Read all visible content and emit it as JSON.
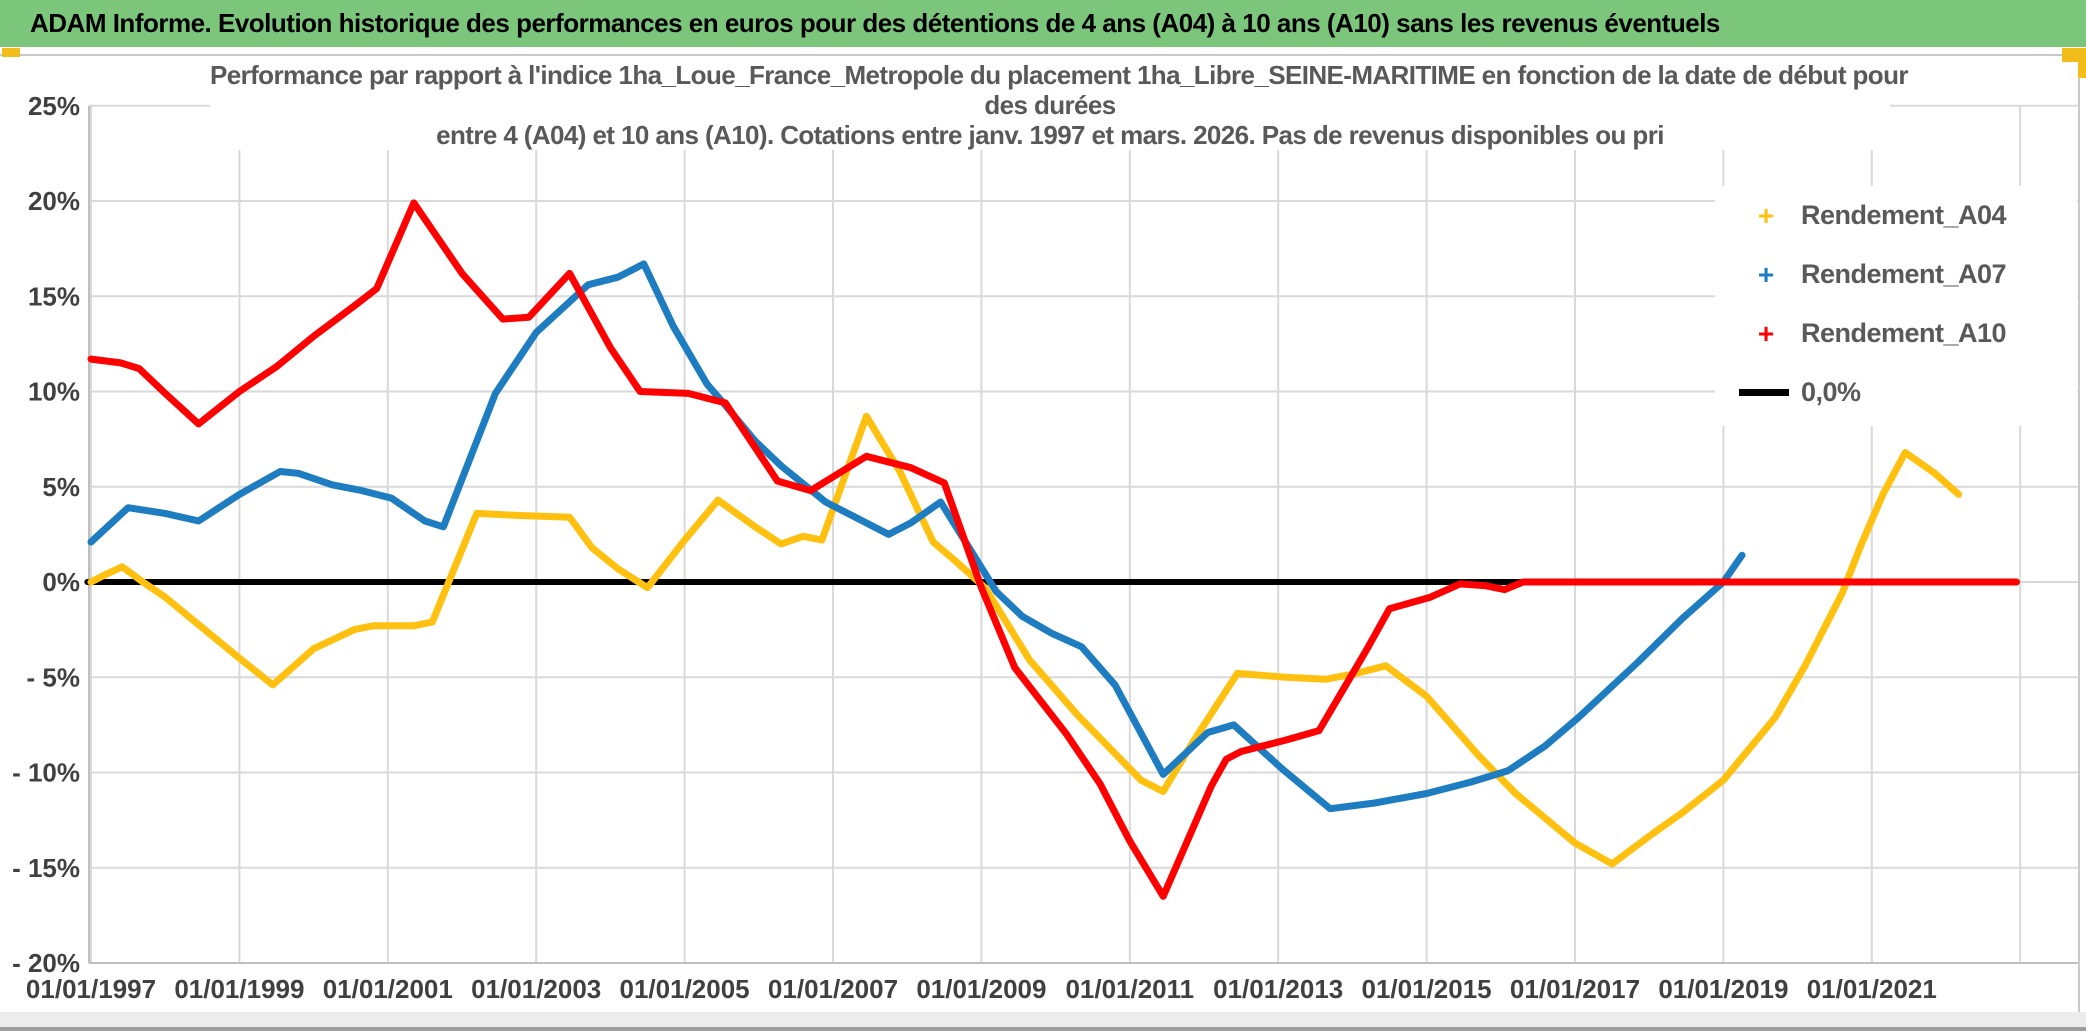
{
  "header": {
    "title": "ADAM Informe. Evolution historique des performances en euros pour des détentions de 4 ans (A04) à 10 ans (A10) sans les revenus éventuels",
    "bar_color": "#7CC67C"
  },
  "chart_data": {
    "type": "line",
    "title_lines": [
      "Performance par rapport à l'indice 1ha_Loue_France_Metropole  du placement 1ha_Libre_SEINE-MARITIME en fonction de la date de début pour",
      "des durées",
      "entre 4 (A04) et 10 ans (A10). Cotations entre janv. 1997 et mars. 2026. Pas de revenus disponibles ou pri"
    ],
    "y_axis": {
      "min": -20,
      "max": 25,
      "step": 5,
      "unit": "%"
    },
    "x_axis": {
      "first_label_year": 1997,
      "label_every_years": 2,
      "plot_end_year": 2023.7
    },
    "grid": true,
    "legend_position": "upper-right",
    "y_tick_labels": [
      "25%",
      "20%",
      "15%",
      "10%",
      "5%",
      "0%",
      "- 5%",
      "- 10%",
      "- 15%",
      "- 20%"
    ],
    "x_tick_labels": [
      "01/01/1997",
      "01/01/1999",
      "01/01/2001",
      "01/01/2003",
      "01/01/2005",
      "01/01/2007",
      "01/01/2009",
      "01/01/2011",
      "01/01/2013",
      "01/01/2015",
      "01/01/2017",
      "01/01/2019",
      "01/01/2021"
    ],
    "series": [
      {
        "name": "Rendement_A04",
        "color": "#FFC010",
        "marker": "plus",
        "points": [
          [
            1997.0,
            0.0
          ],
          [
            1997.2,
            0.4
          ],
          [
            1997.42,
            0.8
          ],
          [
            1997.7,
            0.0
          ],
          [
            1998.0,
            -0.8
          ],
          [
            1998.5,
            -2.4
          ],
          [
            1999.0,
            -4.0
          ],
          [
            1999.45,
            -5.4
          ],
          [
            2000.0,
            -3.5
          ],
          [
            2000.55,
            -2.5
          ],
          [
            2000.8,
            -2.3
          ],
          [
            2001.35,
            -2.3
          ],
          [
            2001.6,
            -2.1
          ],
          [
            2002.2,
            3.6
          ],
          [
            2002.7,
            3.5
          ],
          [
            2003.45,
            3.4
          ],
          [
            2003.75,
            1.8
          ],
          [
            2004.1,
            0.7
          ],
          [
            2004.5,
            -0.3
          ],
          [
            2005.0,
            2.2
          ],
          [
            2005.45,
            4.3
          ],
          [
            2005.95,
            2.9
          ],
          [
            2006.3,
            2.0
          ],
          [
            2006.6,
            2.4
          ],
          [
            2006.85,
            2.2
          ],
          [
            2007.45,
            8.7
          ],
          [
            2007.9,
            5.8
          ],
          [
            2008.35,
            2.1
          ],
          [
            2008.65,
            1.1
          ],
          [
            2009.05,
            -0.3
          ],
          [
            2009.65,
            -4.1
          ],
          [
            2010.3,
            -7.0
          ],
          [
            2011.15,
            -10.4
          ],
          [
            2011.45,
            -11.0
          ],
          [
            2011.85,
            -8.4
          ],
          [
            2012.45,
            -4.8
          ],
          [
            2013.1,
            -5.0
          ],
          [
            2013.65,
            -5.1
          ],
          [
            2014.05,
            -4.8
          ],
          [
            2014.45,
            -4.4
          ],
          [
            2015.0,
            -6.0
          ],
          [
            2015.7,
            -9.1
          ],
          [
            2016.2,
            -11.1
          ],
          [
            2017.0,
            -13.7
          ],
          [
            2017.5,
            -14.8
          ],
          [
            2018.05,
            -13.2
          ],
          [
            2018.45,
            -12.1
          ],
          [
            2019.0,
            -10.4
          ],
          [
            2019.7,
            -7.1
          ],
          [
            2020.1,
            -4.4
          ],
          [
            2020.6,
            -0.6
          ],
          [
            2020.85,
            1.9
          ],
          [
            2021.15,
            4.6
          ],
          [
            2021.45,
            6.8
          ],
          [
            2021.85,
            5.7
          ],
          [
            2022.17,
            4.6
          ]
        ]
      },
      {
        "name": "Rendement_A07",
        "color": "#1E7CC1",
        "marker": "plus",
        "points": [
          [
            1997.0,
            2.1
          ],
          [
            1997.5,
            3.9
          ],
          [
            1998.0,
            3.6
          ],
          [
            1998.45,
            3.2
          ],
          [
            1999.0,
            4.6
          ],
          [
            1999.55,
            5.8
          ],
          [
            1999.8,
            5.7
          ],
          [
            2000.25,
            5.1
          ],
          [
            2000.65,
            4.8
          ],
          [
            2001.05,
            4.4
          ],
          [
            2001.5,
            3.2
          ],
          [
            2001.75,
            2.9
          ],
          [
            2002.45,
            9.9
          ],
          [
            2003.0,
            13.1
          ],
          [
            2003.7,
            15.6
          ],
          [
            2004.1,
            16.0
          ],
          [
            2004.45,
            16.7
          ],
          [
            2004.85,
            13.4
          ],
          [
            2005.3,
            10.4
          ],
          [
            2005.5,
            9.5
          ],
          [
            2005.95,
            7.4
          ],
          [
            2006.3,
            6.1
          ],
          [
            2006.9,
            4.2
          ],
          [
            2007.35,
            3.3
          ],
          [
            2007.75,
            2.5
          ],
          [
            2008.05,
            3.1
          ],
          [
            2008.45,
            4.2
          ],
          [
            2008.85,
            1.7
          ],
          [
            2009.2,
            -0.5
          ],
          [
            2009.55,
            -1.8
          ],
          [
            2009.95,
            -2.7
          ],
          [
            2010.35,
            -3.4
          ],
          [
            2010.8,
            -5.4
          ],
          [
            2011.45,
            -10.1
          ],
          [
            2012.05,
            -7.9
          ],
          [
            2012.4,
            -7.5
          ],
          [
            2013.05,
            -9.8
          ],
          [
            2013.7,
            -11.9
          ],
          [
            2014.3,
            -11.6
          ],
          [
            2015.0,
            -11.1
          ],
          [
            2015.6,
            -10.5
          ],
          [
            2016.1,
            -9.9
          ],
          [
            2016.6,
            -8.6
          ],
          [
            2017.05,
            -7.1
          ],
          [
            2017.85,
            -4.2
          ],
          [
            2018.45,
            -1.9
          ],
          [
            2019.0,
            0.0
          ],
          [
            2019.25,
            1.4
          ]
        ]
      },
      {
        "name": "Rendement_A10",
        "color": "#FF0000",
        "marker": "plus",
        "points": [
          [
            1997.0,
            11.7
          ],
          [
            1997.4,
            11.5
          ],
          [
            1997.65,
            11.2
          ],
          [
            1998.0,
            9.9
          ],
          [
            1998.45,
            8.3
          ],
          [
            1999.0,
            10.0
          ],
          [
            1999.5,
            11.3
          ],
          [
            2000.0,
            12.9
          ],
          [
            2000.55,
            14.5
          ],
          [
            2000.85,
            15.4
          ],
          [
            2001.35,
            19.9
          ],
          [
            2002.0,
            16.2
          ],
          [
            2002.55,
            13.8
          ],
          [
            2002.9,
            13.9
          ],
          [
            2003.45,
            16.2
          ],
          [
            2004.0,
            12.3
          ],
          [
            2004.4,
            10.0
          ],
          [
            2005.05,
            9.9
          ],
          [
            2005.35,
            9.6
          ],
          [
            2005.55,
            9.4
          ],
          [
            2006.25,
            5.3
          ],
          [
            2006.7,
            4.8
          ],
          [
            2007.45,
            6.6
          ],
          [
            2008.05,
            6.0
          ],
          [
            2008.5,
            5.2
          ],
          [
            2009.0,
            -0.3
          ],
          [
            2009.45,
            -4.5
          ],
          [
            2010.15,
            -8.0
          ],
          [
            2010.6,
            -10.6
          ],
          [
            2011.0,
            -13.6
          ],
          [
            2011.45,
            -16.5
          ],
          [
            2012.1,
            -10.7
          ],
          [
            2012.3,
            -9.3
          ],
          [
            2012.5,
            -8.9
          ],
          [
            2013.1,
            -8.3
          ],
          [
            2013.55,
            -7.8
          ],
          [
            2014.2,
            -3.5
          ],
          [
            2014.5,
            -1.4
          ],
          [
            2015.05,
            -0.8
          ],
          [
            2015.45,
            -0.1
          ],
          [
            2015.8,
            -0.2
          ],
          [
            2016.05,
            -0.4
          ],
          [
            2016.3,
            0.0
          ],
          [
            2022.95,
            0.0
          ]
        ]
      },
      {
        "name": "0,0%",
        "color": "#000000",
        "marker": "line",
        "points": [
          [
            1996.95,
            0.0
          ],
          [
            2022.95,
            0.0
          ]
        ]
      }
    ],
    "colors": {
      "grid": "#D9D9D9",
      "axis": "#BFBFBF",
      "tick_text": "#404040",
      "title_text": "#595959"
    }
  }
}
